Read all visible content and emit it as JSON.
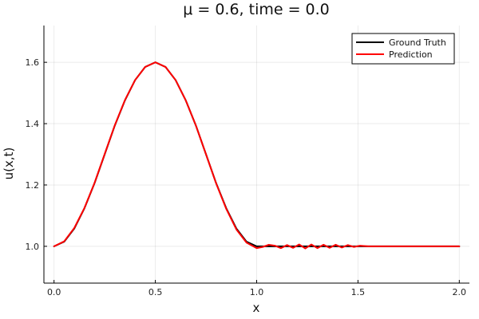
{
  "chart_data": {
    "type": "line",
    "title": "μ = 0.6, time = 0.0",
    "xlabel": "x",
    "ylabel": "u(x,t)",
    "xlim": [
      -0.05,
      2.05
    ],
    "ylim": [
      0.88,
      1.72
    ],
    "xticks": [
      0.0,
      0.5,
      1.0,
      1.5,
      2.0
    ],
    "xtick_labels": [
      "0.0",
      "0.5",
      "1.0",
      "1.5",
      "2.0"
    ],
    "yticks": [
      1.0,
      1.2,
      1.4,
      1.6
    ],
    "ytick_labels": [
      "1.0",
      "1.2",
      "1.4",
      "1.6"
    ],
    "grid": true,
    "legend_position": "top-right",
    "series": [
      {
        "name": "Ground Truth",
        "color": "#000000",
        "x": [
          0.0,
          0.05,
          0.1,
          0.15,
          0.2,
          0.25,
          0.3,
          0.35,
          0.4,
          0.45,
          0.5,
          0.55,
          0.6,
          0.65,
          0.7,
          0.75,
          0.8,
          0.85,
          0.9,
          0.95,
          1.0,
          1.1,
          1.2,
          1.3,
          1.4,
          1.5,
          1.6,
          1.7,
          1.8,
          1.9,
          2.0
        ],
        "values": [
          1.0,
          1.015,
          1.058,
          1.124,
          1.206,
          1.3,
          1.394,
          1.476,
          1.542,
          1.585,
          1.6,
          1.585,
          1.542,
          1.476,
          1.394,
          1.3,
          1.206,
          1.124,
          1.058,
          1.015,
          1.0,
          1.0,
          1.0,
          1.0,
          1.0,
          1.0,
          1.0,
          1.0,
          1.0,
          1.0,
          1.0
        ]
      },
      {
        "name": "Prediction",
        "color": "#ff0000",
        "x": [
          0.0,
          0.05,
          0.1,
          0.15,
          0.2,
          0.25,
          0.3,
          0.35,
          0.4,
          0.45,
          0.5,
          0.55,
          0.6,
          0.65,
          0.7,
          0.75,
          0.8,
          0.85,
          0.9,
          0.95,
          1.0,
          1.03,
          1.06,
          1.09,
          1.12,
          1.15,
          1.18,
          1.21,
          1.24,
          1.27,
          1.3,
          1.33,
          1.36,
          1.39,
          1.42,
          1.45,
          1.48,
          1.51,
          1.55,
          1.6,
          1.7,
          1.8,
          1.9,
          2.0
        ],
        "values": [
          1.0,
          1.016,
          1.06,
          1.125,
          1.207,
          1.301,
          1.395,
          1.477,
          1.542,
          1.585,
          1.6,
          1.585,
          1.542,
          1.476,
          1.394,
          1.3,
          1.205,
          1.122,
          1.055,
          1.012,
          0.994,
          0.998,
          1.005,
          1.002,
          0.994,
          1.004,
          0.995,
          1.006,
          0.993,
          1.006,
          0.994,
          1.005,
          0.995,
          1.005,
          0.996,
          1.004,
          0.998,
          1.002,
          1.0,
          1.0,
          1.0,
          1.0,
          1.0,
          1.0
        ]
      }
    ]
  }
}
